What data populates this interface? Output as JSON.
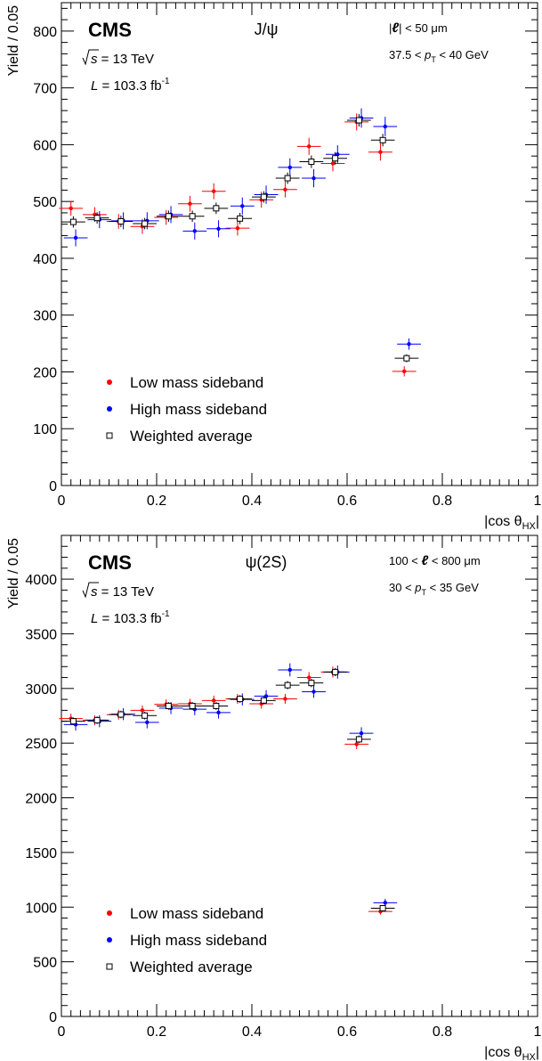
{
  "chart_data": [
    {
      "type": "scatter",
      "experiment": "CMS",
      "energy_label": "√s = 13 TeV",
      "energy_sqrt": "s",
      "energy_value": " = 13 TeV",
      "lumi_pre": "L",
      "lumi_mid": " = 103.3 fb",
      "lumi_sup": "-1",
      "state": "J/ψ",
      "cut1": "|ℓ| < 50 μm",
      "cut1_a": "|",
      "cut1_b": "ℓ",
      "cut1_c": "| < 50 μm",
      "cut2_a": "37.5 < ",
      "cut2_p": "p",
      "cut2_sub": "T",
      "cut2_b": " < 40 GeV",
      "xlabel": "|cos θHX|",
      "xlabel_main": "|cos θ",
      "xlabel_sub": "HX",
      "xlabel_end": "|",
      "ylabel": "Yield / 0.05",
      "xlim": [
        0,
        1
      ],
      "ylim": [
        0,
        850
      ],
      "xticks": [
        0,
        0.2,
        0.4,
        0.6,
        0.8,
        1
      ],
      "xtick_labels": [
        "0",
        "0.2",
        "0.4",
        "0.6",
        "0.8",
        "1"
      ],
      "yticks": [
        0,
        100,
        200,
        300,
        400,
        500,
        600,
        700,
        800
      ],
      "ytick_labels": [
        "0",
        "100",
        "200",
        "300",
        "400",
        "500",
        "600",
        "700",
        "800"
      ],
      "grid": false,
      "legend_position": "bottom-left",
      "series": [
        {
          "name": "Low mass sideband",
          "color": "#ff0000",
          "marker": "filled-circle",
          "offset": -0.005,
          "x": [
            0.025,
            0.075,
            0.125,
            0.175,
            0.225,
            0.275,
            0.325,
            0.375,
            0.425,
            0.475,
            0.525,
            0.575,
            0.625,
            0.675,
            0.725
          ],
          "y": [
            488,
            477,
            465,
            456,
            472,
            496,
            518,
            453,
            503,
            521,
            597,
            567,
            640,
            587,
            201
          ],
          "yerr": [
            13,
            13,
            13,
            13,
            13,
            14,
            14,
            13,
            14,
            14,
            15,
            14,
            15,
            15,
            9
          ]
        },
        {
          "name": "High mass sideband",
          "color": "#0000ff",
          "marker": "filled-circle",
          "offset": 0.005,
          "x": [
            0.025,
            0.075,
            0.125,
            0.175,
            0.225,
            0.275,
            0.325,
            0.375,
            0.425,
            0.475,
            0.525,
            0.575,
            0.625,
            0.675,
            0.725
          ],
          "y": [
            436,
            468,
            466,
            466,
            477,
            448,
            452,
            492,
            512,
            560,
            541,
            583,
            647,
            632,
            249
          ],
          "yerr": [
            15,
            15,
            15,
            15,
            15,
            15,
            15,
            15,
            16,
            16,
            16,
            16,
            17,
            17,
            10
          ]
        },
        {
          "name": "Weighted average",
          "color": "#000000",
          "marker": "open-square",
          "offset": 0,
          "x": [
            0.025,
            0.075,
            0.125,
            0.175,
            0.225,
            0.275,
            0.325,
            0.375,
            0.425,
            0.475,
            0.525,
            0.575,
            0.625,
            0.675,
            0.725
          ],
          "y": [
            464,
            471,
            465,
            461,
            474,
            474,
            488,
            470,
            508,
            541,
            570,
            576,
            643,
            608,
            224
          ],
          "yerr": [
            10,
            10,
            10,
            10,
            10,
            10,
            10,
            10,
            10,
            10,
            11,
            11,
            11,
            11,
            7
          ]
        }
      ]
    },
    {
      "type": "scatter",
      "experiment": "CMS",
      "energy_label": "√s = 13 TeV",
      "energy_sqrt": "s",
      "energy_value": " = 13 TeV",
      "lumi_pre": "L",
      "lumi_mid": " = 103.3 fb",
      "lumi_sup": "-1",
      "state": "ψ(2S)",
      "cut1": "100 < ℓ < 800 μm",
      "cut1_a": "100 < ",
      "cut1_b": "ℓ",
      "cut1_c": " < 800 μm",
      "cut2_a": "30 < ",
      "cut2_p": "p",
      "cut2_sub": "T",
      "cut2_b": " < 35 GeV",
      "xlabel": "|cos θHX|",
      "xlabel_main": "|cos θ",
      "xlabel_sub": "HX",
      "xlabel_end": "|",
      "ylabel": "Yield / 0.05",
      "xlim": [
        0,
        1
      ],
      "ylim": [
        0,
        4400
      ],
      "xticks": [
        0,
        0.2,
        0.4,
        0.6,
        0.8,
        1
      ],
      "xtick_labels": [
        "0",
        "0.2",
        "0.4",
        "0.6",
        "0.8",
        "1"
      ],
      "yticks": [
        0,
        500,
        1000,
        1500,
        2000,
        2500,
        3000,
        3500,
        4000
      ],
      "ytick_labels": [
        "0",
        "500",
        "1000",
        "1500",
        "2000",
        "2500",
        "3000",
        "3500",
        "4000"
      ],
      "grid": false,
      "legend_position": "bottom-left",
      "series": [
        {
          "name": "Low mass sideband",
          "color": "#ff0000",
          "marker": "filled-circle",
          "offset": -0.005,
          "x": [
            0.025,
            0.075,
            0.125,
            0.175,
            0.225,
            0.275,
            0.325,
            0.375,
            0.425,
            0.475,
            0.525,
            0.575,
            0.625,
            0.675
          ],
          "y": [
            2725,
            2710,
            2760,
            2800,
            2855,
            2860,
            2890,
            2905,
            2860,
            2905,
            3100,
            3150,
            2490,
            960
          ],
          "yerr": [
            45,
            45,
            45,
            45,
            45,
            45,
            45,
            45,
            45,
            45,
            50,
            50,
            45,
            28
          ]
        },
        {
          "name": "High mass sideband",
          "color": "#0000ff",
          "marker": "filled-circle",
          "offset": 0.005,
          "x": [
            0.025,
            0.075,
            0.125,
            0.175,
            0.225,
            0.275,
            0.325,
            0.375,
            0.425,
            0.475,
            0.525,
            0.575,
            0.625,
            0.675
          ],
          "y": [
            2670,
            2700,
            2765,
            2690,
            2820,
            2810,
            2780,
            2900,
            2930,
            3170,
            2970,
            3150,
            2590,
            1040
          ],
          "yerr": [
            55,
            55,
            55,
            55,
            55,
            55,
            55,
            55,
            55,
            60,
            55,
            60,
            55,
            35
          ]
        },
        {
          "name": "Weighted average",
          "color": "#000000",
          "marker": "open-square",
          "offset": 0,
          "x": [
            0.025,
            0.075,
            0.125,
            0.175,
            0.225,
            0.275,
            0.325,
            0.375,
            0.425,
            0.475,
            0.525,
            0.575,
            0.625,
            0.675
          ],
          "y": [
            2700,
            2710,
            2762,
            2752,
            2840,
            2840,
            2840,
            2904,
            2890,
            3030,
            3050,
            3150,
            2535,
            990
          ],
          "yerr": [
            35,
            35,
            35,
            35,
            35,
            35,
            35,
            35,
            35,
            38,
            38,
            38,
            35,
            22
          ]
        }
      ]
    }
  ]
}
